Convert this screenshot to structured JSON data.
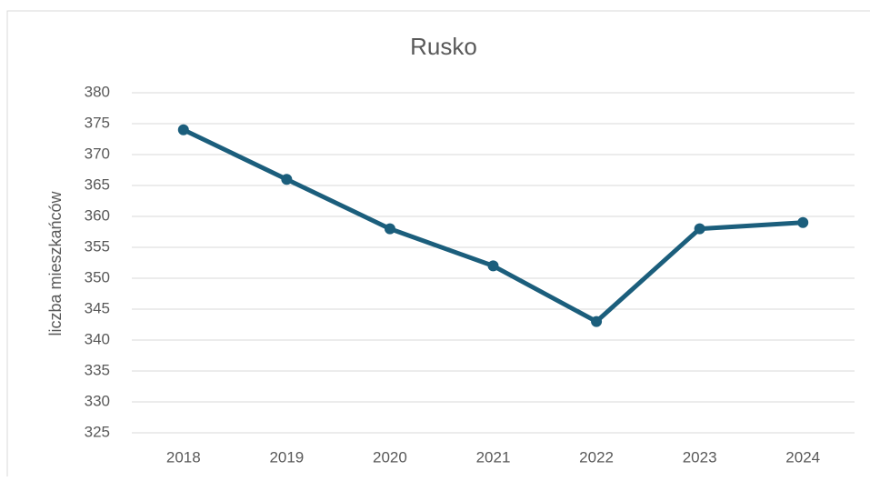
{
  "chart_data": {
    "type": "line",
    "title": "Rusko",
    "y_label": "liczba mieszkańców",
    "categories": [
      "2018",
      "2019",
      "2020",
      "2021",
      "2022",
      "2023",
      "2024"
    ],
    "series": [
      {
        "name": "Rusko",
        "color": "#1b5e7c",
        "values": [
          374,
          366,
          358,
          352,
          343,
          358,
          359
        ]
      }
    ],
    "ylim": [
      325,
      380
    ],
    "yticks": [
      325,
      330,
      335,
      340,
      345,
      350,
      355,
      360,
      365,
      370,
      375,
      380
    ],
    "grid": true
  }
}
